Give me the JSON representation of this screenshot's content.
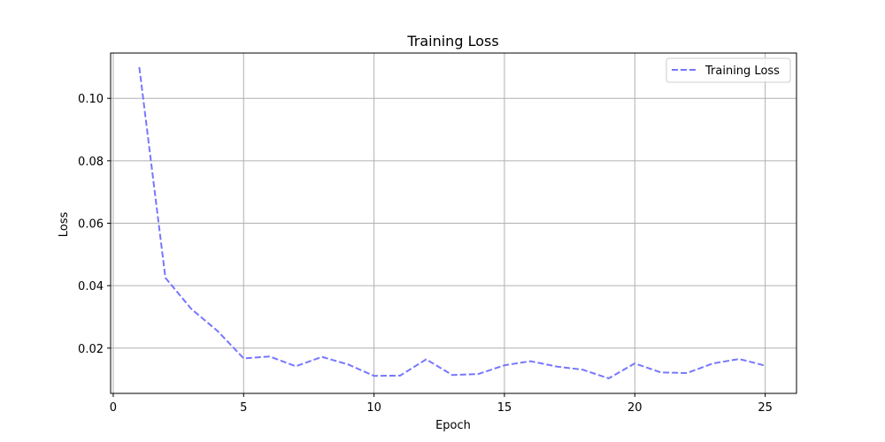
{
  "chart_data": {
    "type": "line",
    "title": "Training Loss",
    "xlabel": "Epoch",
    "ylabel": "Loss",
    "xlim": [
      -0.1,
      26.2
    ],
    "ylim": [
      0.0055,
      0.1145
    ],
    "xticks": [
      0,
      5,
      10,
      15,
      20,
      25
    ],
    "xtick_labels": [
      "0",
      "5",
      "10",
      "15",
      "20",
      "25"
    ],
    "yticks": [
      0.02,
      0.04,
      0.06,
      0.08,
      0.1
    ],
    "ytick_labels": [
      "0.02",
      "0.04",
      "0.06",
      "0.08",
      "0.10"
    ],
    "grid": true,
    "legend_position": "top-right",
    "series": [
      {
        "name": "Training Loss",
        "color": "#7777ff",
        "line_style": "dashed",
        "x": [
          1,
          2,
          3,
          4,
          5,
          6,
          7,
          8,
          9,
          10,
          11,
          12,
          13,
          14,
          15,
          16,
          17,
          18,
          19,
          20,
          21,
          22,
          23,
          24,
          25
        ],
        "y": [
          0.11,
          0.0425,
          0.0325,
          0.0255,
          0.0167,
          0.0173,
          0.0142,
          0.0172,
          0.0148,
          0.0111,
          0.0112,
          0.0164,
          0.0114,
          0.0117,
          0.0145,
          0.0158,
          0.0141,
          0.0131,
          0.0103,
          0.0151,
          0.0122,
          0.012,
          0.0151,
          0.0165,
          0.0144
        ]
      }
    ]
  }
}
